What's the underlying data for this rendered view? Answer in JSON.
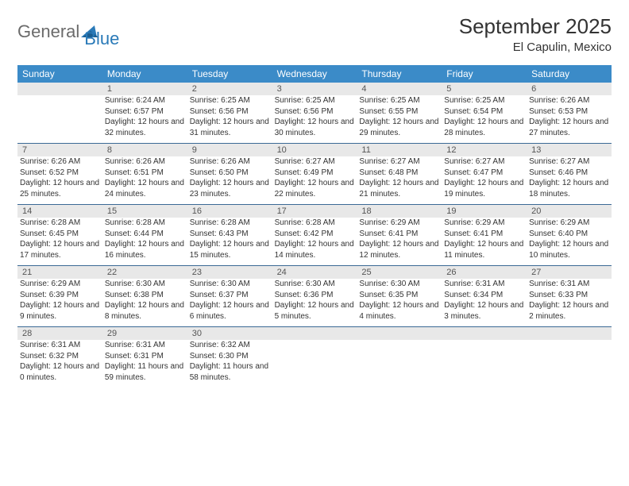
{
  "logo": {
    "gray": "General",
    "blue": "Blue"
  },
  "title": "September 2025",
  "location": "El Capulin, Mexico",
  "headers": [
    "Sunday",
    "Monday",
    "Tuesday",
    "Wednesday",
    "Thursday",
    "Friday",
    "Saturday"
  ],
  "colors": {
    "header_bg": "#3b8bc8",
    "header_text": "#ffffff",
    "daynum_bg": "#e8e8e8",
    "daynum_text": "#555555",
    "body_text": "#333333",
    "week_divider": "#3b6a95",
    "logo_gray": "#6b6b6b",
    "logo_blue": "#2a7ab8"
  },
  "layout": {
    "columns": 7,
    "cell_fontsize_pt": 8,
    "header_fontsize_pt": 9
  },
  "weeks": [
    {
      "nums": [
        "",
        "1",
        "2",
        "3",
        "4",
        "5",
        "6"
      ],
      "cells": [
        null,
        {
          "sr": "6:24 AM",
          "ss": "6:57 PM",
          "dl": "12 hours and 32 minutes."
        },
        {
          "sr": "6:25 AM",
          "ss": "6:56 PM",
          "dl": "12 hours and 31 minutes."
        },
        {
          "sr": "6:25 AM",
          "ss": "6:56 PM",
          "dl": "12 hours and 30 minutes."
        },
        {
          "sr": "6:25 AM",
          "ss": "6:55 PM",
          "dl": "12 hours and 29 minutes."
        },
        {
          "sr": "6:25 AM",
          "ss": "6:54 PM",
          "dl": "12 hours and 28 minutes."
        },
        {
          "sr": "6:26 AM",
          "ss": "6:53 PM",
          "dl": "12 hours and 27 minutes."
        }
      ]
    },
    {
      "nums": [
        "7",
        "8",
        "9",
        "10",
        "11",
        "12",
        "13"
      ],
      "cells": [
        {
          "sr": "6:26 AM",
          "ss": "6:52 PM",
          "dl": "12 hours and 25 minutes."
        },
        {
          "sr": "6:26 AM",
          "ss": "6:51 PM",
          "dl": "12 hours and 24 minutes."
        },
        {
          "sr": "6:26 AM",
          "ss": "6:50 PM",
          "dl": "12 hours and 23 minutes."
        },
        {
          "sr": "6:27 AM",
          "ss": "6:49 PM",
          "dl": "12 hours and 22 minutes."
        },
        {
          "sr": "6:27 AM",
          "ss": "6:48 PM",
          "dl": "12 hours and 21 minutes."
        },
        {
          "sr": "6:27 AM",
          "ss": "6:47 PM",
          "dl": "12 hours and 19 minutes."
        },
        {
          "sr": "6:27 AM",
          "ss": "6:46 PM",
          "dl": "12 hours and 18 minutes."
        }
      ]
    },
    {
      "nums": [
        "14",
        "15",
        "16",
        "17",
        "18",
        "19",
        "20"
      ],
      "cells": [
        {
          "sr": "6:28 AM",
          "ss": "6:45 PM",
          "dl": "12 hours and 17 minutes."
        },
        {
          "sr": "6:28 AM",
          "ss": "6:44 PM",
          "dl": "12 hours and 16 minutes."
        },
        {
          "sr": "6:28 AM",
          "ss": "6:43 PM",
          "dl": "12 hours and 15 minutes."
        },
        {
          "sr": "6:28 AM",
          "ss": "6:42 PM",
          "dl": "12 hours and 14 minutes."
        },
        {
          "sr": "6:29 AM",
          "ss": "6:41 PM",
          "dl": "12 hours and 12 minutes."
        },
        {
          "sr": "6:29 AM",
          "ss": "6:41 PM",
          "dl": "12 hours and 11 minutes."
        },
        {
          "sr": "6:29 AM",
          "ss": "6:40 PM",
          "dl": "12 hours and 10 minutes."
        }
      ]
    },
    {
      "nums": [
        "21",
        "22",
        "23",
        "24",
        "25",
        "26",
        "27"
      ],
      "cells": [
        {
          "sr": "6:29 AM",
          "ss": "6:39 PM",
          "dl": "12 hours and 9 minutes."
        },
        {
          "sr": "6:30 AM",
          "ss": "6:38 PM",
          "dl": "12 hours and 8 minutes."
        },
        {
          "sr": "6:30 AM",
          "ss": "6:37 PM",
          "dl": "12 hours and 6 minutes."
        },
        {
          "sr": "6:30 AM",
          "ss": "6:36 PM",
          "dl": "12 hours and 5 minutes."
        },
        {
          "sr": "6:30 AM",
          "ss": "6:35 PM",
          "dl": "12 hours and 4 minutes."
        },
        {
          "sr": "6:31 AM",
          "ss": "6:34 PM",
          "dl": "12 hours and 3 minutes."
        },
        {
          "sr": "6:31 AM",
          "ss": "6:33 PM",
          "dl": "12 hours and 2 minutes."
        }
      ]
    },
    {
      "nums": [
        "28",
        "29",
        "30",
        "",
        "",
        "",
        ""
      ],
      "cells": [
        {
          "sr": "6:31 AM",
          "ss": "6:32 PM",
          "dl": "12 hours and 0 minutes."
        },
        {
          "sr": "6:31 AM",
          "ss": "6:31 PM",
          "dl": "11 hours and 59 minutes."
        },
        {
          "sr": "6:32 AM",
          "ss": "6:30 PM",
          "dl": "11 hours and 58 minutes."
        },
        null,
        null,
        null,
        null
      ]
    }
  ],
  "labels": {
    "sunrise": "Sunrise:",
    "sunset": "Sunset:",
    "daylight": "Daylight:"
  }
}
